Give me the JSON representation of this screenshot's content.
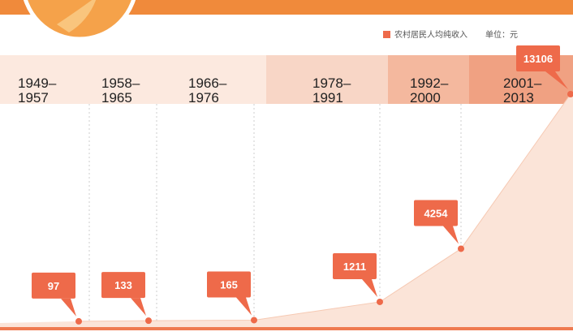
{
  "chart_data": {
    "type": "area",
    "legend": "农村居民人均纯收入",
    "unit": "单位：元",
    "categories": [
      "1949–1957",
      "1958–1965",
      "1966–1976",
      "1978–1991",
      "1992–2000",
      "2001–2013"
    ],
    "series": [
      {
        "name": "农村居民人均纯收入",
        "color": "#ee6a4a",
        "values": [
          97,
          133,
          165,
          1211,
          4254,
          13106
        ]
      }
    ]
  }
}
